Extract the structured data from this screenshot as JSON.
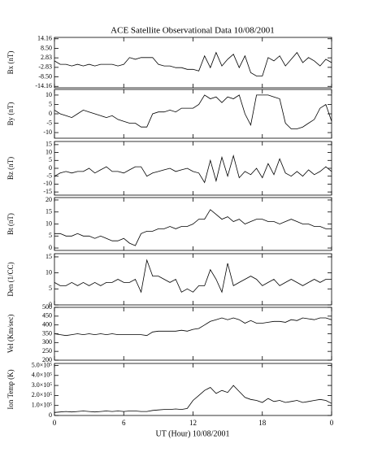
{
  "chart_data": {
    "type": "line",
    "title": "ACE Satellite Observational Data   10/08/2001",
    "xlabel": "UT (Hour)  10/08/2001",
    "color": "#000000",
    "x": [
      0,
      0.5,
      1,
      1.5,
      2,
      2.5,
      3,
      3.5,
      4,
      4.5,
      5,
      5.5,
      6,
      6.5,
      7,
      7.5,
      8,
      8.5,
      9,
      9.5,
      10,
      10.5,
      11,
      11.5,
      12,
      12.5,
      13,
      13.5,
      14,
      14.5,
      15,
      15.5,
      16,
      16.5,
      17,
      17.5,
      18,
      18.5,
      19,
      19.5,
      20,
      20.5,
      21,
      21.5,
      22,
      22.5,
      23,
      23.5,
      24
    ],
    "xlim": [
      0,
      24
    ],
    "xticks": [
      0,
      6,
      12,
      18,
      {
        "value": 24,
        "label": "0"
      }
    ],
    "panels": [
      {
        "ylabel": "Bx (nT)",
        "ylim": [
          -15,
          15
        ],
        "yticks": [
          14.16,
          {
            "value": 8.5,
            "label": "8.50"
          },
          2.83,
          -2.83,
          {
            "value": -8.5,
            "label": "-8.50"
          },
          -14.16
        ],
        "values": [
          1,
          -1,
          -1,
          -2,
          -1,
          -2,
          -1,
          -2,
          -1,
          -1,
          -1,
          -2,
          -1,
          3,
          2,
          3,
          3,
          3,
          -1,
          -2,
          -2,
          -3,
          -3,
          -4,
          -4,
          -5,
          4,
          -3,
          6,
          -2,
          2,
          5,
          -3,
          4,
          -6,
          -8,
          -8,
          3,
          1,
          4,
          -2,
          2,
          6,
          0,
          3,
          1,
          -2,
          2,
          0
        ]
      },
      {
        "ylabel": "By (nT)",
        "ylim": [
          -13,
          13
        ],
        "yticks": [
          10,
          5,
          0,
          -5,
          -10
        ],
        "values": [
          2,
          0,
          -1,
          -2,
          0,
          2,
          1,
          0,
          -1,
          -2,
          -1,
          -3,
          -4,
          -5,
          -5,
          -7,
          -7,
          0,
          1,
          1,
          2,
          1,
          3,
          3,
          3,
          5,
          10,
          8,
          9,
          6,
          9,
          8,
          10,
          0,
          -6,
          10,
          10,
          10,
          9,
          8,
          -5,
          -8,
          -8,
          -7,
          -5,
          -3,
          3,
          5,
          -4
        ]
      },
      {
        "ylabel": "Bz (nT)",
        "ylim": [
          -17,
          17
        ],
        "yticks": [
          15,
          10,
          5,
          0,
          -5,
          -10,
          -15
        ],
        "values": [
          -5,
          -3,
          -2,
          -3,
          -2,
          -2,
          0,
          -3,
          -1,
          1,
          -2,
          -2,
          -3,
          -1,
          1,
          1,
          -5,
          -3,
          -2,
          -1,
          0,
          -2,
          -1,
          0,
          -2,
          -3,
          -9,
          5,
          -8,
          7,
          -5,
          8,
          -6,
          -2,
          -4,
          0,
          -6,
          3,
          -4,
          6,
          -3,
          -5,
          -2,
          -5,
          -1,
          -4,
          -2,
          1,
          -2
        ]
      },
      {
        "ylabel": "Bt (nT)",
        "ylim": [
          -1,
          21
        ],
        "yticks": [
          20,
          15,
          10,
          5,
          0
        ],
        "values": [
          6,
          6,
          5,
          5,
          6,
          5,
          5,
          4,
          5,
          4,
          3,
          3,
          4,
          2,
          1,
          6,
          7,
          7,
          8,
          8,
          9,
          8,
          9,
          9,
          10,
          12,
          12,
          16,
          14,
          12,
          13,
          11,
          12,
          10,
          11,
          12,
          12,
          11,
          11,
          10,
          11,
          12,
          11,
          10,
          10,
          9,
          9,
          8,
          8
        ]
      },
      {
        "ylabel": "Den (1/CC)",
        "ylim": [
          0,
          16
        ],
        "yticks": [
          15,
          10,
          5,
          0
        ],
        "values": [
          7,
          6,
          6,
          7,
          6,
          7,
          6,
          7,
          6,
          7,
          7,
          8,
          7,
          7,
          8,
          4,
          14,
          9,
          9,
          8,
          7,
          8,
          4,
          5,
          4,
          6,
          6,
          11,
          8,
          4,
          13,
          6,
          7,
          8,
          9,
          8,
          6,
          7,
          8,
          6,
          7,
          8,
          7,
          6,
          7,
          8,
          7,
          8,
          8
        ]
      },
      {
        "ylabel": "Vel (Km/sec)",
        "ylim": [
          200,
          500
        ],
        "yticks": [
          500,
          450,
          400,
          350,
          300,
          250,
          200
        ],
        "values": [
          350,
          345,
          340,
          345,
          350,
          345,
          350,
          345,
          350,
          345,
          350,
          345,
          345,
          345,
          345,
          345,
          340,
          360,
          365,
          365,
          365,
          365,
          370,
          365,
          375,
          380,
          400,
          420,
          430,
          440,
          430,
          440,
          430,
          410,
          425,
          410,
          410,
          415,
          420,
          420,
          415,
          430,
          425,
          440,
          435,
          430,
          440,
          440,
          430
        ]
      },
      {
        "ylabel": "Ion Temp (K)",
        "ylim": [
          0,
          520000
        ],
        "yticks": [
          {
            "value": 500000,
            "label": "5.0×10⁵"
          },
          {
            "value": 400000,
            "label": "4.0×10⁵"
          },
          {
            "value": 300000,
            "label": "3.0×10⁵"
          },
          {
            "value": 200000,
            "label": "2.0×10⁵"
          },
          {
            "value": 100000,
            "label": "1.0×10⁵"
          },
          0
        ],
        "values": [
          30000,
          35000,
          40000,
          35000,
          40000,
          45000,
          40000,
          35000,
          40000,
          45000,
          40000,
          45000,
          40000,
          45000,
          45000,
          40000,
          40000,
          50000,
          55000,
          60000,
          60000,
          65000,
          60000,
          70000,
          150000,
          200000,
          250000,
          280000,
          220000,
          250000,
          230000,
          300000,
          240000,
          180000,
          160000,
          150000,
          130000,
          170000,
          140000,
          150000,
          130000,
          140000,
          150000,
          130000,
          140000,
          150000,
          160000,
          150000,
          120000
        ]
      }
    ]
  }
}
